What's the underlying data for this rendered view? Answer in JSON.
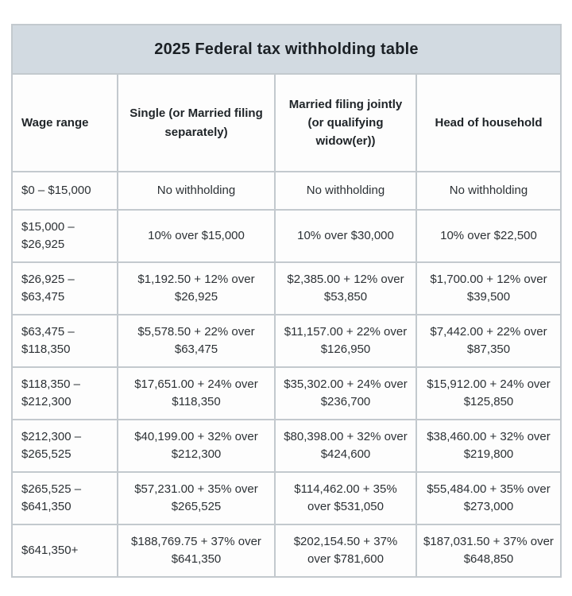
{
  "colors": {
    "title_background": "#d2dae1",
    "border": "#c3c9ce",
    "cell_background": "#fdfdfd",
    "text": "#2c3135",
    "title_text": "#1b2025"
  },
  "chart_data": {
    "type": "table",
    "title": "2025 Federal tax withholding table",
    "columns": [
      "Wage range",
      "Single (or Married filing separately)",
      "Married filing jointly (or qualifying widow(er))",
      "Head of household"
    ],
    "rows": [
      [
        "$0 – $15,000",
        "No withholding",
        "No withholding",
        "No withholding"
      ],
      [
        "$15,000 – $26,925",
        "10% over $15,000",
        "10% over $30,000",
        "10% over $22,500"
      ],
      [
        "$26,925 – $63,475",
        "$1,192.50 + 12% over $26,925",
        "$2,385.00 + 12% over $53,850",
        "$1,700.00 + 12% over $39,500"
      ],
      [
        "$63,475 – $118,350",
        "$5,578.50 + 22% over $63,475",
        "$11,157.00 + 22% over $126,950",
        "$7,442.00 + 22% over $87,350"
      ],
      [
        "$118,350 – $212,300",
        "$17,651.00 + 24% over $118,350",
        "$35,302.00 + 24% over $236,700",
        "$15,912.00 + 24% over $125,850"
      ],
      [
        "$212,300 – $265,525",
        "$40,199.00 + 32% over $212,300",
        "$80,398.00 + 32% over $424,600",
        "$38,460.00 + 32% over $219,800"
      ],
      [
        "$265,525 – $641,350",
        "$57,231.00 + 35% over $265,525",
        "$114,462.00 + 35% over $531,050",
        "$55,484.00 + 35% over $273,000"
      ],
      [
        "$641,350+",
        "$188,769.75 + 37% over $641,350",
        "$202,154.50 + 37% over $781,600",
        "$187,031.50 + 37% over $648,850"
      ]
    ]
  }
}
